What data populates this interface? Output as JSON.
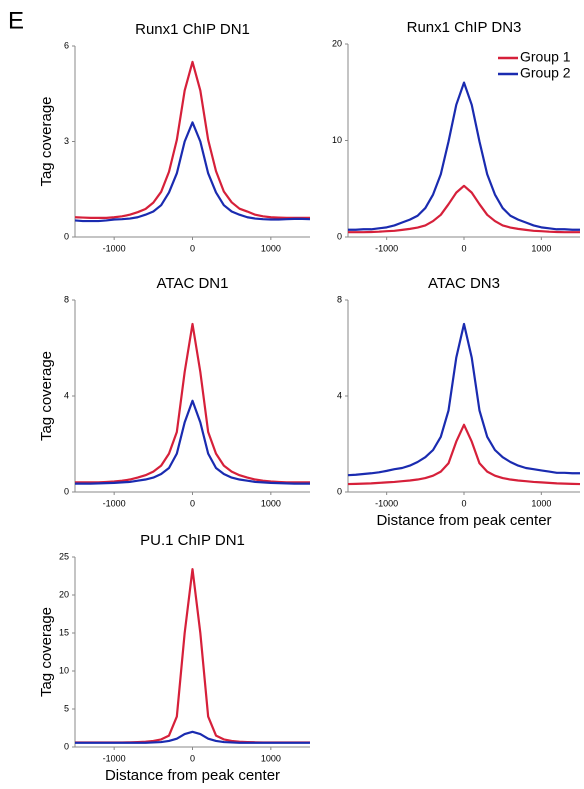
{
  "panel_label": "E",
  "chart_data": [
    {
      "type": "line",
      "title": "Runx1 ChIP DN1",
      "ylabel": "Tag coverage",
      "x": [
        -1500,
        -1400,
        -1300,
        -1200,
        -1100,
        -1000,
        -900,
        -800,
        -700,
        -600,
        -500,
        -400,
        -300,
        -200,
        -100,
        0,
        100,
        200,
        300,
        400,
        500,
        600,
        700,
        800,
        900,
        1000,
        1100,
        1200,
        1300,
        1400,
        1500
      ],
      "xlim": [
        -1500,
        1500
      ],
      "xticks": [
        -1000,
        0,
        1000
      ],
      "ylim": [
        0,
        6
      ],
      "yticks": [
        0,
        3,
        6
      ],
      "series": [
        {
          "name": "Group 1",
          "color": "#d6203a",
          "values": [
            0.62,
            0.61,
            0.6,
            0.6,
            0.6,
            0.62,
            0.65,
            0.7,
            0.78,
            0.88,
            1.08,
            1.42,
            2.05,
            3.05,
            4.6,
            5.5,
            4.6,
            3.05,
            2.07,
            1.43,
            1.09,
            0.89,
            0.8,
            0.7,
            0.65,
            0.62,
            0.61,
            0.6,
            0.6,
            0.6,
            0.6
          ]
        },
        {
          "name": "Group 2",
          "color": "#1a2bb0",
          "values": [
            0.52,
            0.5,
            0.5,
            0.5,
            0.52,
            0.55,
            0.56,
            0.58,
            0.62,
            0.7,
            0.8,
            1.0,
            1.4,
            2.0,
            3.0,
            3.6,
            3.0,
            2.0,
            1.4,
            1.0,
            0.8,
            0.7,
            0.62,
            0.58,
            0.56,
            0.55,
            0.55,
            0.56,
            0.57,
            0.57,
            0.56
          ]
        }
      ]
    },
    {
      "type": "line",
      "title": "Runx1 ChIP DN3",
      "legend": "upper right",
      "x": [
        -1500,
        -1400,
        -1300,
        -1200,
        -1100,
        -1000,
        -900,
        -800,
        -700,
        -600,
        -500,
        -400,
        -300,
        -200,
        -100,
        0,
        100,
        200,
        300,
        400,
        500,
        600,
        700,
        800,
        900,
        1000,
        1100,
        1200,
        1300,
        1400,
        1500
      ],
      "xlim": [
        -1500,
        1500
      ],
      "xticks": [
        -1000,
        0,
        1000
      ],
      "ylim": [
        0,
        20
      ],
      "yticks": [
        0,
        10,
        20
      ],
      "series": [
        {
          "name": "Group 1",
          "color": "#d6203a",
          "values": [
            0.5,
            0.5,
            0.5,
            0.52,
            0.55,
            0.6,
            0.64,
            0.74,
            0.84,
            0.98,
            1.2,
            1.65,
            2.3,
            3.4,
            4.6,
            5.3,
            4.6,
            3.4,
            2.3,
            1.65,
            1.2,
            0.98,
            0.84,
            0.74,
            0.64,
            0.6,
            0.55,
            0.52,
            0.5,
            0.5,
            0.5
          ]
        },
        {
          "name": "Group 2",
          "color": "#1a2bb0",
          "values": [
            0.75,
            0.75,
            0.8,
            0.8,
            0.9,
            1.0,
            1.2,
            1.5,
            1.8,
            2.2,
            3.0,
            4.4,
            6.5,
            9.9,
            13.7,
            16.0,
            13.7,
            9.9,
            6.5,
            4.4,
            3.0,
            2.2,
            1.8,
            1.5,
            1.2,
            1.0,
            0.9,
            0.8,
            0.8,
            0.75,
            0.75
          ]
        }
      ]
    },
    {
      "type": "line",
      "title": "ATAC DN1",
      "ylabel": "Tag coverage",
      "x": [
        -1500,
        -1400,
        -1300,
        -1200,
        -1100,
        -1000,
        -900,
        -800,
        -700,
        -600,
        -500,
        -400,
        -300,
        -200,
        -100,
        0,
        100,
        200,
        300,
        400,
        500,
        600,
        700,
        800,
        900,
        1000,
        1100,
        1200,
        1300,
        1400,
        1500
      ],
      "xlim": [
        -1500,
        1500
      ],
      "xticks": [
        -1000,
        0,
        1000
      ],
      "ylim": [
        0,
        8
      ],
      "yticks": [
        0,
        4,
        8
      ],
      "series": [
        {
          "name": "Group 1",
          "color": "#d6203a",
          "values": [
            0.4,
            0.4,
            0.4,
            0.4,
            0.42,
            0.44,
            0.47,
            0.52,
            0.6,
            0.7,
            0.85,
            1.1,
            1.6,
            2.5,
            5.0,
            7.0,
            5.0,
            2.5,
            1.6,
            1.1,
            0.85,
            0.7,
            0.6,
            0.52,
            0.47,
            0.44,
            0.42,
            0.4,
            0.4,
            0.4,
            0.4
          ]
        },
        {
          "name": "Group 2",
          "color": "#1a2bb0",
          "values": [
            0.35,
            0.35,
            0.35,
            0.36,
            0.37,
            0.38,
            0.4,
            0.42,
            0.47,
            0.52,
            0.6,
            0.75,
            1.0,
            1.6,
            2.9,
            3.8,
            2.9,
            1.6,
            1.0,
            0.75,
            0.6,
            0.52,
            0.47,
            0.42,
            0.4,
            0.38,
            0.37,
            0.36,
            0.35,
            0.35,
            0.35
          ]
        }
      ]
    },
    {
      "type": "line",
      "title": "ATAC DN3",
      "xlabel": "Distance from peak center",
      "x": [
        -1500,
        -1400,
        -1300,
        -1200,
        -1100,
        -1000,
        -900,
        -800,
        -700,
        -600,
        -500,
        -400,
        -300,
        -200,
        -100,
        0,
        100,
        200,
        300,
        400,
        500,
        600,
        700,
        800,
        900,
        1000,
        1100,
        1200,
        1300,
        1400,
        1500
      ],
      "xlim": [
        -1500,
        1500
      ],
      "xticks": [
        -1000,
        0,
        1000
      ],
      "ylim": [
        0,
        8
      ],
      "yticks": [
        0,
        4,
        8
      ],
      "series": [
        {
          "name": "Group 1",
          "color": "#d6203a",
          "values": [
            0.33,
            0.34,
            0.35,
            0.36,
            0.38,
            0.4,
            0.42,
            0.45,
            0.48,
            0.52,
            0.58,
            0.68,
            0.85,
            1.2,
            2.1,
            2.8,
            2.1,
            1.2,
            0.85,
            0.68,
            0.58,
            0.52,
            0.48,
            0.45,
            0.42,
            0.4,
            0.38,
            0.36,
            0.35,
            0.34,
            0.33
          ]
        },
        {
          "name": "Group 2",
          "color": "#1a2bb0",
          "values": [
            0.7,
            0.72,
            0.75,
            0.78,
            0.82,
            0.88,
            0.95,
            1.0,
            1.1,
            1.25,
            1.45,
            1.75,
            2.3,
            3.4,
            5.6,
            7.0,
            5.6,
            3.4,
            2.3,
            1.75,
            1.45,
            1.25,
            1.1,
            1.0,
            0.95,
            0.9,
            0.85,
            0.8,
            0.8,
            0.78,
            0.78
          ]
        }
      ]
    },
    {
      "type": "line",
      "title": "PU.1 ChIP DN1",
      "ylabel": "Tag coverage",
      "xlabel": "Distance from peak center",
      "x": [
        -1500,
        -1400,
        -1300,
        -1200,
        -1100,
        -1000,
        -900,
        -800,
        -700,
        -600,
        -500,
        -400,
        -300,
        -200,
        -100,
        0,
        100,
        200,
        300,
        400,
        500,
        600,
        700,
        800,
        900,
        1000,
        1100,
        1200,
        1300,
        1400,
        1500
      ],
      "xlim": [
        -1500,
        1500
      ],
      "xticks": [
        -1000,
        0,
        1000
      ],
      "ylim": [
        0,
        25
      ],
      "yticks": [
        0,
        5,
        10,
        15,
        20,
        25
      ],
      "series": [
        {
          "name": "Group 1",
          "color": "#d6203a",
          "values": [
            0.6,
            0.6,
            0.6,
            0.6,
            0.6,
            0.6,
            0.6,
            0.62,
            0.65,
            0.7,
            0.8,
            1.0,
            1.5,
            4.0,
            15.0,
            23.4,
            15.0,
            4.0,
            1.5,
            1.0,
            0.8,
            0.7,
            0.65,
            0.62,
            0.6,
            0.6,
            0.6,
            0.6,
            0.6,
            0.6,
            0.6
          ]
        },
        {
          "name": "Group 2",
          "color": "#1a2bb0",
          "values": [
            0.55,
            0.55,
            0.55,
            0.55,
            0.55,
            0.55,
            0.55,
            0.55,
            0.55,
            0.55,
            0.6,
            0.65,
            0.8,
            1.1,
            1.7,
            2.0,
            1.7,
            1.1,
            0.8,
            0.65,
            0.6,
            0.55,
            0.55,
            0.55,
            0.55,
            0.55,
            0.55,
            0.55,
            0.55,
            0.55,
            0.55
          ]
        }
      ]
    }
  ]
}
